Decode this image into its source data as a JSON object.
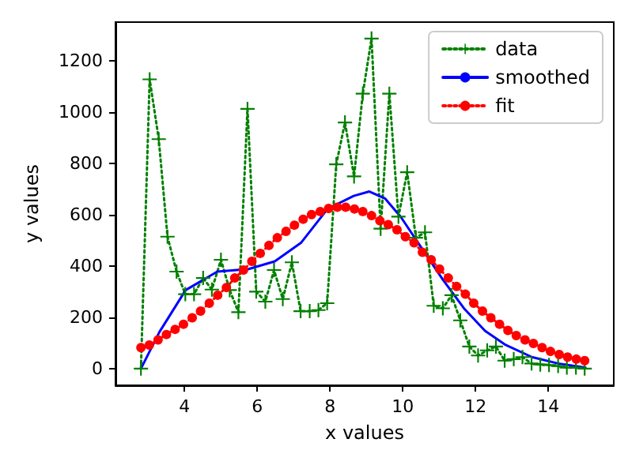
{
  "chart_data": {
    "type": "line",
    "xlabel": "x values",
    "ylabel": "y values",
    "xlim": [
      2.1,
      15.8
    ],
    "xticks": [
      4,
      6,
      8,
      10,
      12,
      14
    ],
    "ylim": [
      -65,
      1350
    ],
    "yticks": [
      0,
      200,
      400,
      600,
      800,
      1000,
      1200
    ],
    "grid": false,
    "legend": "top right",
    "series": [
      {
        "name": "data",
        "color": "#008000",
        "marker": "cross",
        "line_style": "dotted",
        "x": [
          2.8,
          3.04,
          3.29,
          3.53,
          3.78,
          4.02,
          4.26,
          4.51,
          4.75,
          5,
          5.24,
          5.48,
          5.73,
          5.97,
          6.22,
          6.46,
          6.7,
          6.95,
          7.19,
          7.44,
          7.68,
          7.92,
          8.17,
          8.41,
          8.66,
          8.9,
          9.14,
          9.39,
          9.63,
          9.88,
          10.12,
          10.36,
          10.61,
          10.85,
          11.1,
          11.34,
          11.58,
          11.83,
          12.07,
          12.32,
          12.56,
          12.8,
          13.05,
          13.29,
          13.54,
          13.78,
          14.02,
          14.27,
          14.51,
          14.76,
          15
        ],
        "values": [
          0,
          1127,
          894,
          514,
          378,
          290,
          290,
          353,
          308,
          424,
          306,
          220,
          1012,
          300,
          261,
          384,
          271,
          414,
          224,
          224,
          228,
          255,
          796,
          959,
          749,
          1071,
          1286,
          545,
          1071,
          592,
          765,
          510,
          531,
          245,
          235,
          286,
          188,
          86,
          51,
          71,
          86,
          31,
          37,
          45,
          20,
          16,
          14,
          10,
          4,
          4,
          0
        ]
      },
      {
        "name": "smoothed",
        "color": "#0000ff",
        "marker": "none",
        "line_style": "solid",
        "x": [
          2.8,
          3.31,
          4.03,
          4.9,
          5.76,
          6.48,
          7.2,
          7.93,
          8.65,
          9.08,
          9.51,
          9.94,
          10.52,
          11.1,
          11.68,
          12.26,
          12.83,
          13.55,
          14.27,
          15.02
        ],
        "values": [
          0,
          143,
          306,
          378,
          388,
          418,
          490,
          622,
          673,
          690,
          663,
          592,
          469,
          347,
          235,
          147,
          92,
          45,
          20,
          4
        ]
      },
      {
        "name": "fit",
        "color": "#ff0000",
        "marker": "circle",
        "line_style": "dotted",
        "x": [
          2.8,
          3.03,
          3.27,
          3.5,
          3.74,
          3.97,
          4.21,
          4.44,
          4.68,
          4.91,
          5.15,
          5.38,
          5.62,
          5.85,
          6.08,
          6.32,
          6.55,
          6.79,
          7.02,
          7.26,
          7.49,
          7.73,
          7.96,
          8.2,
          8.43,
          8.67,
          8.9,
          9.14,
          9.37,
          9.6,
          9.84,
          10.07,
          10.31,
          10.54,
          10.78,
          11.01,
          11.25,
          11.48,
          11.72,
          11.95,
          12.19,
          12.42,
          12.66,
          12.89,
          13.12,
          13.36,
          13.59,
          13.83,
          14.06,
          14.3,
          14.53,
          14.77,
          15
        ],
        "values": [
          82,
          92,
          112,
          133,
          153,
          173,
          198,
          224,
          255,
          286,
          316,
          353,
          384,
          418,
          449,
          480,
          510,
          535,
          559,
          582,
          600,
          612,
          624,
          629,
          629,
          622,
          612,
          596,
          576,
          561,
          541,
          514,
          490,
          453,
          424,
          388,
          353,
          320,
          290,
          255,
          224,
          198,
          173,
          149,
          129,
          112,
          98,
          82,
          67,
          55,
          45,
          37,
          31
        ]
      }
    ]
  }
}
